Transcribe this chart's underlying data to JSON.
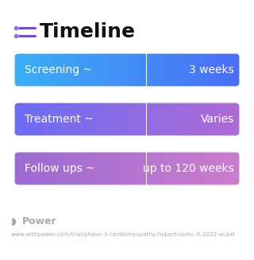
{
  "title": "Timeline",
  "title_fontsize": 18,
  "title_fontweight": "bold",
  "title_color": "#111111",
  "background_color": "#ffffff",
  "rows": [
    {
      "label_left": "Screening ~",
      "label_right": "3 weeks",
      "grad_start": "#3ab0f5",
      "grad_end": "#4a6cf7"
    },
    {
      "label_left": "Treatment ~",
      "label_right": "Varies",
      "grad_start": "#6a6cf5",
      "grad_end": "#b06ad4"
    },
    {
      "label_left": "Follow ups ~",
      "label_right": "up to 120 weeks",
      "grad_start": "#9a6ad4",
      "grad_end": "#cc7dcc"
    }
  ],
  "row_text_color": "#ffffff",
  "row_label_fontsize": 10,
  "footer_text": "Power",
  "footer_url": "www.withpower.com/trial/phase-3-cardiomyopathy-hypertrophic-9-2022-acaaf",
  "footer_color": "#aaaaaa",
  "footer_fontsize": 5.2,
  "icon_line_color": "#7744ee",
  "icon_dot_color": "#9966ff"
}
